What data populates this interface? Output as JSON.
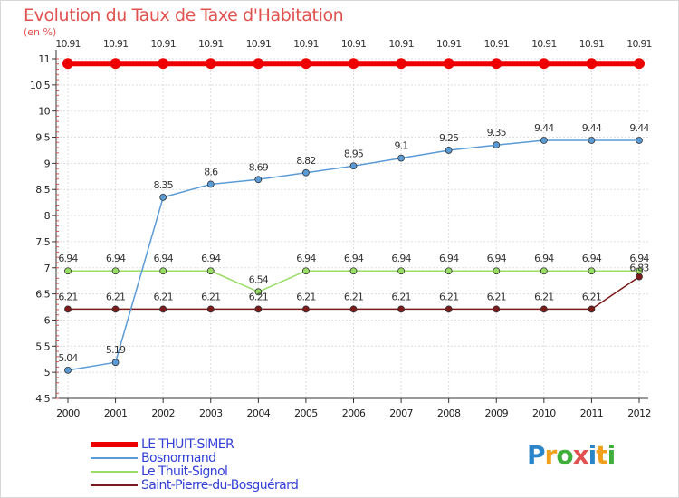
{
  "title": "Evolution du Taux de Taxe d'Habitation",
  "unit_label": "(en %)",
  "logo": {
    "text": "Proxiti",
    "letters": [
      {
        "ch": "P",
        "color": "#2b86c9"
      },
      {
        "ch": "r",
        "color": "#f0a01c"
      },
      {
        "ch": "o",
        "color": "#3fae3a"
      },
      {
        "ch": "x",
        "color": "#e0524f"
      },
      {
        "ch": "i",
        "color": "#2b86c9"
      },
      {
        "ch": "t",
        "color": "#f0a01c"
      },
      {
        "ch": "i",
        "color": "#3fae3a"
      }
    ]
  },
  "chart_data": {
    "type": "line",
    "x": [
      2000,
      2001,
      2002,
      2003,
      2004,
      2005,
      2006,
      2007,
      2008,
      2009,
      2010,
      2011,
      2012
    ],
    "ylim": [
      4.5,
      11
    ],
    "yticks": [
      4.5,
      5,
      5.5,
      6,
      6.5,
      7,
      7.5,
      8,
      8.5,
      9,
      9.5,
      10,
      10.5,
      11
    ],
    "ytick_labels": [
      "4.5",
      "5",
      "5.5",
      "6",
      "6.5",
      "7",
      "7.5",
      "8",
      "8.5",
      "9",
      "9.5",
      "10",
      "10.5",
      "11"
    ],
    "grid": true,
    "legend_position": "bottom-left",
    "series": [
      {
        "name": "LE THUIT-SIMER",
        "color": "#ee0000",
        "values": [
          10.91,
          10.91,
          10.91,
          10.91,
          10.91,
          10.91,
          10.91,
          10.91,
          10.91,
          10.91,
          10.91,
          10.91,
          10.91
        ],
        "labels": [
          "10.91",
          "10.91",
          "10.91",
          "10.91",
          "10.91",
          "10.91",
          "10.91",
          "10.91",
          "10.91",
          "10.91",
          "10.91",
          "10.91",
          "10.91"
        ]
      },
      {
        "name": "Bosnormand",
        "color": "#5a9bd5",
        "values": [
          5.04,
          5.19,
          8.35,
          8.6,
          8.69,
          8.82,
          8.95,
          9.1,
          9.25,
          9.35,
          9.44,
          9.44,
          9.44
        ],
        "labels": [
          "5.04",
          "5.19",
          "8.35",
          "8.6",
          "8.69",
          "8.82",
          "8.95",
          "9.1",
          "9.25",
          "9.35",
          "9.44",
          "9.44",
          "9.44"
        ]
      },
      {
        "name": "Le Thuit-Signol",
        "color": "#99dd66",
        "values": [
          6.94,
          6.94,
          6.94,
          6.94,
          6.54,
          6.94,
          6.94,
          6.94,
          6.94,
          6.94,
          6.94,
          6.94,
          6.94
        ],
        "labels": [
          "6.94",
          "6.94",
          "6.94",
          "6.94",
          "6.54",
          "6.94",
          "6.94",
          "6.94",
          "6.94",
          "6.94",
          "6.94",
          "6.94",
          "6.94"
        ]
      },
      {
        "name": "Saint-Pierre-du-Bosguérard",
        "color": "#7a1a1a",
        "values": [
          6.21,
          6.21,
          6.21,
          6.21,
          6.21,
          6.21,
          6.21,
          6.21,
          6.21,
          6.21,
          6.21,
          6.21,
          6.83
        ],
        "labels": [
          "6.21",
          "6.21",
          "6.21",
          "6.21",
          "6.21",
          "6.21",
          "6.21",
          "6.21",
          "6.21",
          "6.21",
          "6.21",
          "6.21",
          "6.83"
        ]
      }
    ]
  }
}
